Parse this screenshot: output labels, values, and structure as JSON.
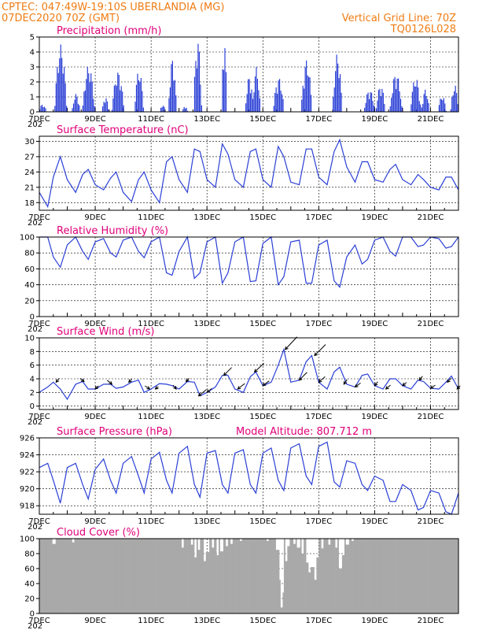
{
  "header": {
    "line1_left": "CPTEC:  047:49W-19:10S  UBERLANDIA (MG)",
    "line2_left": "07DEC2020 70Z (GMT)",
    "line1_right": "Vertical Grid Line: 70Z",
    "line2_right": "TQ0126L028"
  },
  "colors": {
    "header": "#f07c14",
    "panel_title": "#e0007a",
    "series": "#2a3fd6",
    "cloud": "#a9a9a9",
    "wind_arrow": "#000000"
  },
  "x_axis": {
    "tick_labels": [
      "7DEC",
      "9DEC",
      "11DEC",
      "13DEC",
      "15DEC",
      "17DEC",
      "19DEC",
      "21DEC"
    ],
    "cut_label": "202",
    "range_days": [
      7,
      22
    ]
  },
  "chart_data": [
    {
      "type": "bar",
      "title": "Precipitation (mm/h)",
      "ylim": [
        0,
        5
      ],
      "yticks": [
        "0",
        "1",
        "2",
        "3",
        "4",
        "5"
      ],
      "events": [
        {
          "day": 7.1,
          "peak": 0.5,
          "width": 0.3
        },
        {
          "day": 7.75,
          "peak": 4.5,
          "width": 0.45
        },
        {
          "day": 8.3,
          "peak": 1.2,
          "width": 0.3
        },
        {
          "day": 8.75,
          "peak": 3.1,
          "width": 0.45
        },
        {
          "day": 9.35,
          "peak": 1.0,
          "width": 0.25
        },
        {
          "day": 9.8,
          "peak": 2.7,
          "width": 0.45
        },
        {
          "day": 10.55,
          "peak": 2.8,
          "width": 0.35
        },
        {
          "day": 11.4,
          "peak": 0.5,
          "width": 0.2
        },
        {
          "day": 11.75,
          "peak": 3.6,
          "width": 0.3
        },
        {
          "day": 12.2,
          "peak": 0.4,
          "width": 0.2
        },
        {
          "day": 12.65,
          "peak": 4.9,
          "width": 0.3
        },
        {
          "day": 13.6,
          "peak": 4.9,
          "width": 0.2
        },
        {
          "day": 14.5,
          "peak": 2.4,
          "width": 0.3
        },
        {
          "day": 14.75,
          "peak": 3.0,
          "width": 0.3
        },
        {
          "day": 15.55,
          "peak": 2.3,
          "width": 0.4
        },
        {
          "day": 16.55,
          "peak": 3.5,
          "width": 0.4
        },
        {
          "day": 17.65,
          "peak": 3.9,
          "width": 0.35
        },
        {
          "day": 18.8,
          "peak": 1.5,
          "width": 0.4
        },
        {
          "day": 19.2,
          "peak": 1.8,
          "width": 0.35
        },
        {
          "day": 19.75,
          "peak": 2.6,
          "width": 0.45
        },
        {
          "day": 20.45,
          "peak": 2.3,
          "width": 0.4
        },
        {
          "day": 20.8,
          "peak": 1.5,
          "width": 0.3
        },
        {
          "day": 21.4,
          "peak": 1.1,
          "width": 0.3
        },
        {
          "day": 21.85,
          "peak": 1.8,
          "width": 0.3
        }
      ]
    },
    {
      "type": "line",
      "title": "Surface Temperature (nC)",
      "ylim": [
        16.5,
        31
      ],
      "yticks": [
        "18",
        "21",
        "24",
        "27",
        "30"
      ],
      "tick_values": [
        18,
        21,
        24,
        27,
        30
      ],
      "x": [
        7.0,
        7.3,
        7.5,
        7.75,
        8.0,
        8.3,
        8.55,
        8.75,
        9.0,
        9.3,
        9.55,
        9.75,
        10.0,
        10.3,
        10.55,
        10.75,
        11.0,
        11.3,
        11.55,
        11.75,
        12.0,
        12.3,
        12.55,
        12.75,
        13.0,
        13.3,
        13.55,
        13.75,
        14.0,
        14.3,
        14.55,
        14.75,
        15.0,
        15.3,
        15.55,
        15.75,
        16.0,
        16.3,
        16.55,
        16.75,
        17.0,
        17.3,
        17.55,
        17.75,
        18.0,
        18.3,
        18.55,
        18.75,
        19.0,
        19.3,
        19.55,
        19.75,
        20.0,
        20.3,
        20.55,
        20.75,
        21.0,
        21.3,
        21.55,
        21.75,
        22.0
      ],
      "y": [
        20.0,
        17.2,
        23.0,
        27.0,
        22.5,
        20.0,
        23.5,
        24.5,
        21.5,
        20.5,
        22.8,
        24.0,
        20.0,
        18.2,
        22.5,
        24.0,
        20.5,
        18.0,
        26.0,
        27.0,
        22.5,
        20.0,
        28.5,
        28.0,
        22.5,
        21.0,
        29.5,
        27.5,
        22.5,
        21.0,
        28.0,
        28.5,
        22.5,
        21.0,
        29.0,
        27.0,
        22.0,
        21.5,
        28.5,
        28.5,
        23.0,
        21.5,
        28.0,
        30.3,
        25.0,
        22.0,
        26.0,
        26.0,
        22.5,
        22.0,
        24.5,
        25.5,
        22.5,
        21.5,
        23.5,
        22.5,
        21.0,
        20.5,
        23.0,
        23.0,
        20.5
      ]
    },
    {
      "type": "line",
      "title": "Relative Humidity (%)",
      "ylim": [
        0,
        100
      ],
      "yticks": [
        "0",
        "20",
        "40",
        "60",
        "80",
        "100"
      ],
      "tick_values": [
        0,
        20,
        40,
        60,
        80,
        100
      ],
      "x": [
        7.0,
        7.3,
        7.5,
        7.75,
        8.0,
        8.3,
        8.55,
        8.75,
        9.0,
        9.3,
        9.55,
        9.75,
        10.0,
        10.3,
        10.55,
        10.75,
        11.0,
        11.3,
        11.55,
        11.75,
        12.0,
        12.3,
        12.55,
        12.75,
        13.0,
        13.3,
        13.55,
        13.75,
        14.0,
        14.3,
        14.55,
        14.75,
        15.0,
        15.3,
        15.55,
        15.75,
        16.0,
        16.3,
        16.55,
        16.75,
        17.0,
        17.3,
        17.55,
        17.75,
        18.0,
        18.3,
        18.55,
        18.75,
        19.0,
        19.3,
        19.55,
        19.75,
        20.0,
        20.3,
        20.55,
        20.75,
        21.0,
        21.3,
        21.55,
        21.75,
        22.0
      ],
      "y": [
        100,
        100,
        75,
        62,
        90,
        100,
        82,
        72,
        94,
        98,
        80,
        75,
        96,
        100,
        82,
        74,
        94,
        100,
        55,
        52,
        82,
        100,
        48,
        55,
        94,
        100,
        42,
        55,
        94,
        100,
        44,
        45,
        92,
        100,
        40,
        50,
        94,
        96,
        42,
        42,
        90,
        96,
        45,
        37,
        75,
        90,
        66,
        72,
        96,
        100,
        82,
        76,
        100,
        100,
        88,
        90,
        100,
        98,
        86,
        88,
        100
      ]
    },
    {
      "type": "line",
      "title": "Surface Wind (m/s)",
      "ylim": [
        -0.5,
        10
      ],
      "yticks": [
        "0",
        "2",
        "4",
        "6",
        "8",
        "10"
      ],
      "tick_values": [
        0,
        2,
        4,
        6,
        8,
        10
      ],
      "x": [
        7.0,
        7.3,
        7.5,
        7.75,
        8.0,
        8.3,
        8.55,
        8.75,
        9.0,
        9.3,
        9.55,
        9.75,
        10.0,
        10.3,
        10.55,
        10.75,
        11.0,
        11.3,
        11.55,
        11.75,
        12.0,
        12.3,
        12.55,
        12.75,
        13.0,
        13.3,
        13.55,
        13.75,
        14.0,
        14.3,
        14.55,
        14.75,
        15.0,
        15.3,
        15.55,
        15.75,
        16.0,
        16.3,
        16.55,
        16.75,
        17.0,
        17.3,
        17.55,
        17.75,
        18.0,
        18.3,
        18.55,
        18.75,
        19.0,
        19.3,
        19.55,
        19.75,
        20.0,
        20.3,
        20.55,
        20.75,
        21.0,
        21.3,
        21.55,
        21.75,
        22.0
      ],
      "y": [
        2.0,
        2.8,
        3.5,
        2.5,
        1.0,
        3.2,
        3.6,
        2.5,
        2.5,
        3.2,
        3.2,
        2.6,
        2.8,
        3.5,
        3.8,
        2.0,
        2.5,
        3.3,
        3.2,
        3.0,
        2.5,
        3.6,
        3.5,
        1.5,
        2.0,
        2.8,
        4.5,
        4.5,
        2.5,
        2.0,
        4.3,
        5.0,
        3.0,
        3.5,
        6.0,
        8.3,
        3.5,
        3.8,
        6.5,
        7.4,
        3.5,
        2.5,
        5.0,
        5.7,
        3.2,
        2.8,
        4.5,
        4.7,
        3.0,
        2.5,
        4.0,
        4.0,
        3.0,
        2.5,
        3.8,
        3.6,
        2.6,
        2.5,
        3.5,
        4.4,
        2.5
      ],
      "arrows": [
        {
          "day": 7.6,
          "dx": 4,
          "dy": -5
        },
        {
          "day": 8.6,
          "dx": -5,
          "dy": -4
        },
        {
          "day": 9.0,
          "dx": 4,
          "dy": -4
        },
        {
          "day": 9.6,
          "dx": -6,
          "dy": -5
        },
        {
          "day": 10.2,
          "dx": 4,
          "dy": -4
        },
        {
          "day": 10.95,
          "dx": -6,
          "dy": -4
        },
        {
          "day": 11.15,
          "dx": 4,
          "dy": -3
        },
        {
          "day": 11.9,
          "dx": -4,
          "dy": -5
        },
        {
          "day": 12.25,
          "dx": 4,
          "dy": -4
        },
        {
          "day": 12.7,
          "dx": 10,
          "dy": -8
        },
        {
          "day": 13.0,
          "dx": 6,
          "dy": -5
        },
        {
          "day": 13.6,
          "dx": 10,
          "dy": -10
        },
        {
          "day": 14.1,
          "dx": 9,
          "dy": -7
        },
        {
          "day": 14.7,
          "dx": 12,
          "dy": -11
        },
        {
          "day": 15.0,
          "dx": 8,
          "dy": -6
        },
        {
          "day": 15.8,
          "dx": 15,
          "dy": -16
        },
        {
          "day": 16.3,
          "dx": 10,
          "dy": -10
        },
        {
          "day": 16.85,
          "dx": 14,
          "dy": -14
        },
        {
          "day": 17.0,
          "dx": 8,
          "dy": -7
        },
        {
          "day": 17.9,
          "dx": 4,
          "dy": -6
        },
        {
          "day": 18.3,
          "dx": 7,
          "dy": -5
        },
        {
          "day": 19.0,
          "dx": 4,
          "dy": -5
        },
        {
          "day": 19.4,
          "dx": 6,
          "dy": -5
        },
        {
          "day": 20.0,
          "dx": 5,
          "dy": -4
        },
        {
          "day": 20.6,
          "dx": 4,
          "dy": -5
        },
        {
          "day": 21.0,
          "dx": 6,
          "dy": -4
        },
        {
          "day": 21.6,
          "dx": 5,
          "dy": -5
        },
        {
          "day": 21.95,
          "dx": 4,
          "dy": -4
        }
      ]
    },
    {
      "type": "line",
      "title": "Surface Pressure (hPa)",
      "subtitle": "Model Altitude: 807.712 m",
      "ylim": [
        917,
        926
      ],
      "yticks": [
        "918",
        "920",
        "922",
        "924",
        "926"
      ],
      "tick_values": [
        918,
        920,
        922,
        924,
        926
      ],
      "x": [
        7.0,
        7.3,
        7.5,
        7.75,
        8.0,
        8.3,
        8.55,
        8.75,
        9.0,
        9.3,
        9.55,
        9.75,
        10.0,
        10.3,
        10.55,
        10.75,
        11.0,
        11.3,
        11.55,
        11.75,
        12.0,
        12.3,
        12.55,
        12.75,
        13.0,
        13.3,
        13.55,
        13.75,
        14.0,
        14.3,
        14.55,
        14.75,
        15.0,
        15.3,
        15.55,
        15.75,
        16.0,
        16.3,
        16.55,
        16.75,
        17.0,
        17.3,
        17.55,
        17.75,
        18.0,
        18.3,
        18.55,
        18.75,
        19.0,
        19.3,
        19.55,
        19.75,
        20.0,
        20.3,
        20.55,
        20.75,
        21.0,
        21.3,
        21.55,
        21.75,
        22.0
      ],
      "y": [
        922.5,
        923.0,
        921.0,
        918.3,
        922.5,
        923.0,
        920.5,
        918.8,
        922.3,
        923.5,
        921.0,
        919.5,
        923.0,
        923.8,
        921.5,
        919.5,
        923.5,
        924.3,
        921.0,
        919.5,
        924.2,
        925.0,
        920.5,
        919.0,
        924.2,
        924.5,
        920.5,
        919.5,
        924.2,
        924.6,
        920.5,
        919.5,
        924.2,
        924.8,
        921.0,
        919.8,
        924.8,
        925.3,
        921.5,
        920.5,
        925.0,
        925.5,
        920.8,
        920.2,
        923.3,
        923.0,
        920.5,
        919.8,
        921.5,
        921.0,
        918.5,
        918.5,
        920.5,
        919.8,
        917.5,
        917.8,
        919.8,
        919.5,
        917.3,
        917.0,
        919.5
      ]
    },
    {
      "type": "bar",
      "title": "Cloud Cover (%)",
      "ylim": [
        0,
        100
      ],
      "yticks": [
        "0",
        "20",
        "40",
        "60",
        "80",
        "100"
      ],
      "tick_values": [
        0,
        20,
        40,
        60,
        80,
        100
      ],
      "dips": [
        {
          "day": 7.5,
          "value": 93
        },
        {
          "day": 8.2,
          "value": 95
        },
        {
          "day": 12.1,
          "value": 88
        },
        {
          "day": 12.45,
          "value": 92
        },
        {
          "day": 12.55,
          "value": 75
        },
        {
          "day": 12.7,
          "value": 85
        },
        {
          "day": 12.9,
          "value": 70
        },
        {
          "day": 13.0,
          "value": 82
        },
        {
          "day": 13.2,
          "value": 88
        },
        {
          "day": 13.35,
          "value": 78
        },
        {
          "day": 13.5,
          "value": 83
        },
        {
          "day": 13.7,
          "value": 90
        },
        {
          "day": 13.85,
          "value": 93
        },
        {
          "day": 14.2,
          "value": 97
        },
        {
          "day": 15.15,
          "value": 97
        },
        {
          "day": 15.5,
          "value": 85
        },
        {
          "day": 15.6,
          "value": 45
        },
        {
          "day": 15.65,
          "value": 8
        },
        {
          "day": 15.7,
          "value": 28
        },
        {
          "day": 15.8,
          "value": 70
        },
        {
          "day": 15.9,
          "value": 90
        },
        {
          "day": 16.1,
          "value": 93
        },
        {
          "day": 16.25,
          "value": 88
        },
        {
          "day": 16.4,
          "value": 80
        },
        {
          "day": 16.55,
          "value": 68
        },
        {
          "day": 16.65,
          "value": 55
        },
        {
          "day": 16.75,
          "value": 62
        },
        {
          "day": 16.85,
          "value": 45
        },
        {
          "day": 16.95,
          "value": 75
        },
        {
          "day": 17.1,
          "value": 87
        },
        {
          "day": 17.35,
          "value": 92
        },
        {
          "day": 17.6,
          "value": 88
        },
        {
          "day": 17.75,
          "value": 60
        },
        {
          "day": 17.85,
          "value": 78
        },
        {
          "day": 18.0,
          "value": 92
        },
        {
          "day": 18.2,
          "value": 97
        }
      ]
    }
  ]
}
